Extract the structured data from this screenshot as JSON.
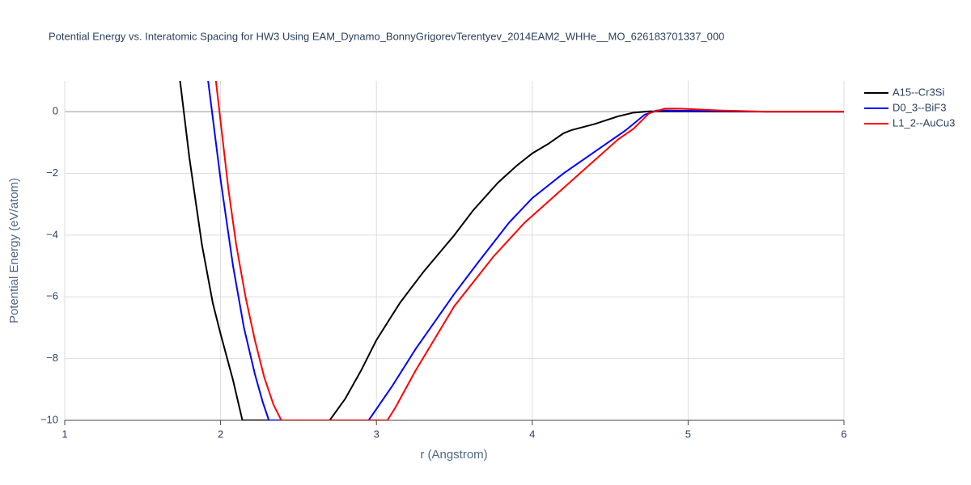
{
  "chart_data": {
    "type": "line",
    "title": "Potential Energy vs. Interatomic Spacing for HW3 Using EAM_Dynamo_BonnyGrigorevTerentyev_2014EAM2_WHHe__MO_626183701337_000",
    "x_label": "r (Angstrom)",
    "y_label": "Potential Energy (eV/atom)",
    "xlim": [
      1,
      6
    ],
    "ylim": [
      -10,
      1
    ],
    "xticks": [
      1,
      2,
      3,
      4,
      5,
      6
    ],
    "yticks": [
      {
        "value": -10,
        "label": "−10"
      },
      {
        "value": -8,
        "label": "−8"
      },
      {
        "value": -6,
        "label": "−6"
      },
      {
        "value": -4,
        "label": "−4"
      },
      {
        "value": -2,
        "label": "−2"
      },
      0
    ],
    "grid": true,
    "legend": "top-right",
    "series": [
      {
        "name": "A15--Cr3Si",
        "color": "#000000",
        "x": [
          1.74,
          1.8,
          1.88,
          1.95,
          2.0,
          2.08,
          2.14,
          2.7,
          2.8,
          2.9,
          3.0,
          3.15,
          3.3,
          3.5,
          3.62,
          3.78,
          3.9,
          4.0,
          4.1,
          4.2,
          4.25,
          4.4,
          4.55,
          4.65,
          4.75,
          5.0,
          5.5,
          6.0
        ],
        "values": [
          1,
          -1.5,
          -4.3,
          -6.2,
          -7.2,
          -8.7,
          -10,
          -10,
          -9.3,
          -8.4,
          -7.4,
          -6.2,
          -5.2,
          -4.0,
          -3.2,
          -2.3,
          -1.75,
          -1.35,
          -1.05,
          -0.7,
          -0.6,
          -0.4,
          -0.15,
          -0.03,
          0.01,
          0.01,
          0,
          0
        ]
      },
      {
        "name": "D0_3--BiF3",
        "color": "#0000ff",
        "x": [
          1.92,
          2.0,
          2.08,
          2.15,
          2.22,
          2.27,
          2.31,
          2.95,
          3.1,
          3.25,
          3.5,
          3.65,
          3.85,
          4.0,
          4.2,
          4.4,
          4.6,
          4.72,
          4.8,
          5.0,
          5.5,
          6.0
        ],
        "values": [
          1,
          -2.2,
          -5,
          -7,
          -8.5,
          -9.4,
          -10,
          -10,
          -8.9,
          -7.7,
          -5.9,
          -4.9,
          -3.6,
          -2.8,
          -2.0,
          -1.3,
          -0.6,
          -0.1,
          0.04,
          0.03,
          0,
          0
        ]
      },
      {
        "name": "L1_2--AuCu3",
        "color": "#ff0000",
        "x": [
          1.97,
          2.05,
          2.1,
          2.16,
          2.22,
          2.28,
          2.34,
          2.39,
          3.07,
          3.12,
          3.25,
          3.5,
          3.75,
          3.95,
          4.15,
          4.35,
          4.55,
          4.65,
          4.75,
          4.85,
          4.95,
          5.2,
          5.5,
          6.0
        ],
        "values": [
          1,
          -2.5,
          -4.3,
          -6,
          -7.4,
          -8.6,
          -9.5,
          -10,
          -10,
          -9.6,
          -8.4,
          -6.3,
          -4.7,
          -3.6,
          -2.7,
          -1.8,
          -0.9,
          -0.55,
          -0.05,
          0.1,
          0.1,
          0.04,
          0,
          0
        ]
      }
    ]
  }
}
